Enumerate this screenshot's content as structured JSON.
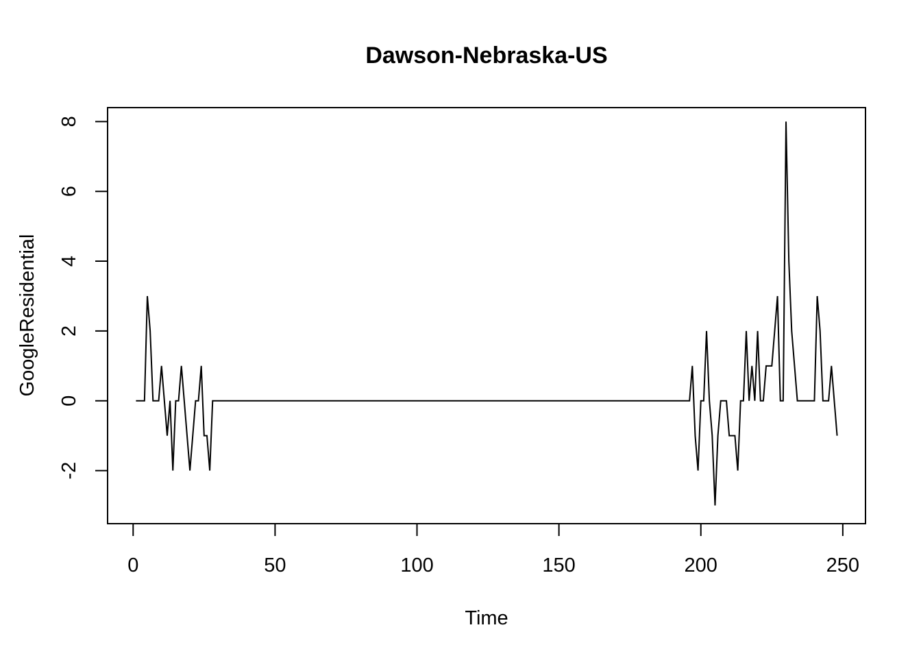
{
  "chart_data": {
    "type": "line",
    "title": "Dawson-Nebraska-US",
    "xlabel": "Time",
    "ylabel": "GoogleResidential",
    "xlim": [
      -9,
      258
    ],
    "ylim": [
      -3.52,
      8.4
    ],
    "xticks": [
      0,
      50,
      100,
      150,
      200,
      250
    ],
    "yticks": [
      -2,
      0,
      2,
      4,
      6,
      8
    ],
    "grid": false,
    "legend": "none",
    "line_color": "#000000",
    "series": [
      {
        "points": [
          [
            1,
            0
          ],
          [
            2,
            0
          ],
          [
            3,
            0
          ],
          [
            4,
            0
          ],
          [
            5,
            3
          ],
          [
            6,
            2
          ],
          [
            7,
            0
          ],
          [
            8,
            0
          ],
          [
            9,
            0
          ],
          [
            10,
            1
          ],
          [
            11,
            0
          ],
          [
            12,
            -1
          ],
          [
            13,
            0
          ],
          [
            14,
            -2
          ],
          [
            15,
            0
          ],
          [
            16,
            0
          ],
          [
            17,
            1
          ],
          [
            18,
            0
          ],
          [
            19,
            -1
          ],
          [
            20,
            -2
          ],
          [
            21,
            -1
          ],
          [
            22,
            0
          ],
          [
            23,
            0
          ],
          [
            24,
            1
          ],
          [
            25,
            -1
          ],
          [
            26,
            -1
          ],
          [
            27,
            -2
          ],
          [
            28,
            0
          ],
          [
            196,
            0
          ],
          [
            197,
            1
          ],
          [
            198,
            -1
          ],
          [
            199,
            -2
          ],
          [
            200,
            0
          ],
          [
            201,
            0
          ],
          [
            202,
            2
          ],
          [
            203,
            0
          ],
          [
            204,
            -1
          ],
          [
            205,
            -3
          ],
          [
            206,
            -1
          ],
          [
            207,
            0
          ],
          [
            208,
            0
          ],
          [
            209,
            0
          ],
          [
            210,
            -1
          ],
          [
            211,
            -1
          ],
          [
            212,
            -1
          ],
          [
            213,
            -2
          ],
          [
            214,
            0
          ],
          [
            215,
            0
          ],
          [
            216,
            2
          ],
          [
            217,
            0
          ],
          [
            218,
            1
          ],
          [
            219,
            0
          ],
          [
            220,
            2
          ],
          [
            221,
            0
          ],
          [
            222,
            0
          ],
          [
            223,
            1
          ],
          [
            224,
            1
          ],
          [
            225,
            1
          ],
          [
            226,
            2
          ],
          [
            227,
            3
          ],
          [
            228,
            0
          ],
          [
            229,
            0
          ],
          [
            230,
            8
          ],
          [
            231,
            4
          ],
          [
            232,
            2
          ],
          [
            233,
            1
          ],
          [
            234,
            0
          ],
          [
            235,
            0
          ],
          [
            236,
            0
          ],
          [
            237,
            0
          ],
          [
            238,
            0
          ],
          [
            239,
            0
          ],
          [
            240,
            0
          ],
          [
            241,
            3
          ],
          [
            242,
            2
          ],
          [
            243,
            0
          ],
          [
            244,
            0
          ],
          [
            245,
            0
          ],
          [
            246,
            1
          ],
          [
            247,
            0
          ],
          [
            248,
            -1
          ]
        ]
      }
    ]
  }
}
